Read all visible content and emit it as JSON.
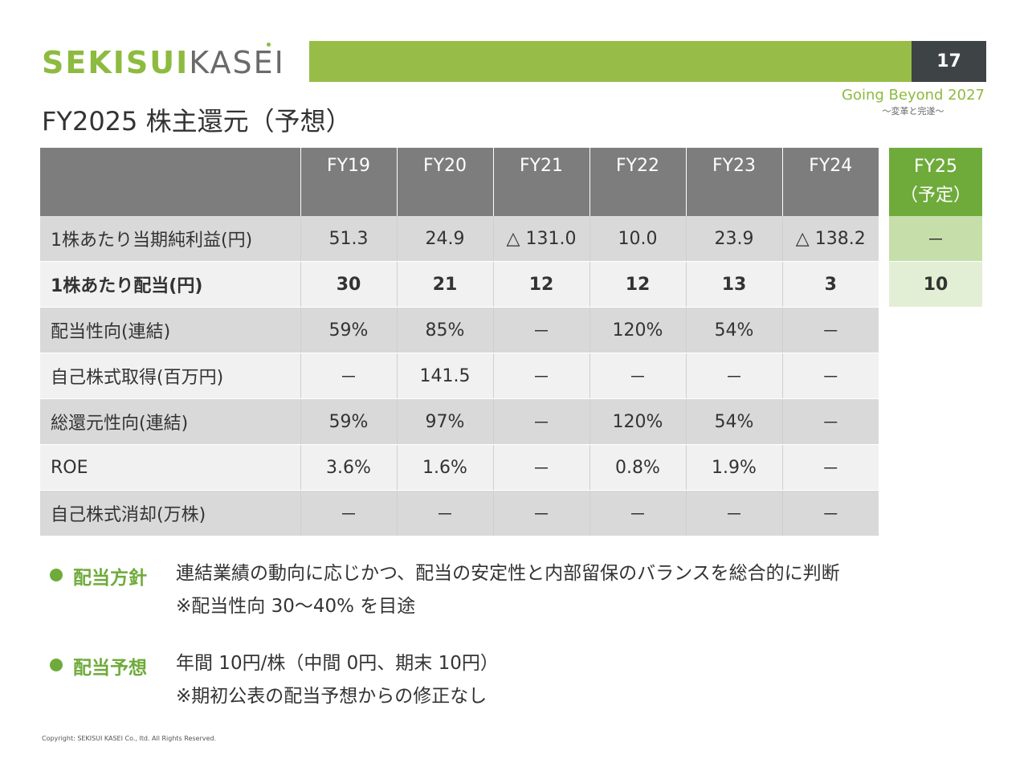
{
  "brand": {
    "logo_bold": "SEKISUI",
    "logo_light": "KASEI",
    "page_number": "17",
    "tagline": "Going Beyond 2027",
    "tagline_sub": "～変革と完遂～"
  },
  "title": "FY2025 株主還元（予想）",
  "table": {
    "columns": [
      "FY19",
      "FY20",
      "FY21",
      "FY22",
      "FY23",
      "FY24"
    ],
    "forecast_column": {
      "label": "FY25",
      "sub": "（予定）"
    },
    "rows": [
      {
        "label": "1株あたり当期純利益(円)",
        "values": [
          "51.3",
          "24.9",
          "△ 131.0",
          "10.0",
          "23.9",
          "△ 138.2"
        ],
        "forecast": "－"
      },
      {
        "label": "1株あたり配当(円)",
        "values": [
          "30",
          "21",
          "12",
          "12",
          "13",
          "3"
        ],
        "forecast": "10"
      },
      {
        "label": "配当性向(連結)",
        "values": [
          "59%",
          "85%",
          "－",
          "120%",
          "54%",
          "－"
        ]
      },
      {
        "label": "自己株式取得(百万円)",
        "values": [
          "－",
          "141.5",
          "－",
          "－",
          "－",
          "－"
        ]
      },
      {
        "label": "総還元性向(連結)",
        "values": [
          "59%",
          "97%",
          "－",
          "120%",
          "54%",
          "－"
        ]
      },
      {
        "label": "ROE",
        "values": [
          "3.6%",
          "1.6%",
          "－",
          "0.8%",
          "1.9%",
          "－"
        ]
      },
      {
        "label": "自己株式消却(万株)",
        "values": [
          "－",
          "－",
          "－",
          "－",
          "－",
          "－"
        ]
      }
    ]
  },
  "policy": {
    "dividend_policy": {
      "head": "配当方針",
      "line1": "連結業績の動向に応じかつ、配当の安定性と内部留保のバランスを総合的に判断",
      "line2": "※配当性向 30～40% を目途"
    },
    "dividend_forecast": {
      "head": "配当予想",
      "line1": "年間 10円/株（中間 0円、期末 10円）",
      "line2": "※期初公表の配当予想からの修正なし"
    }
  },
  "copyright": "Copyright: SEKISUI KASEI Co., ltd. All Rights Reserved.",
  "colors": {
    "accent_green": "#8dbb3f",
    "forecast_green": "#6fab3b",
    "header_gray": "#7d7d7d",
    "page_box": "#3e4346"
  }
}
